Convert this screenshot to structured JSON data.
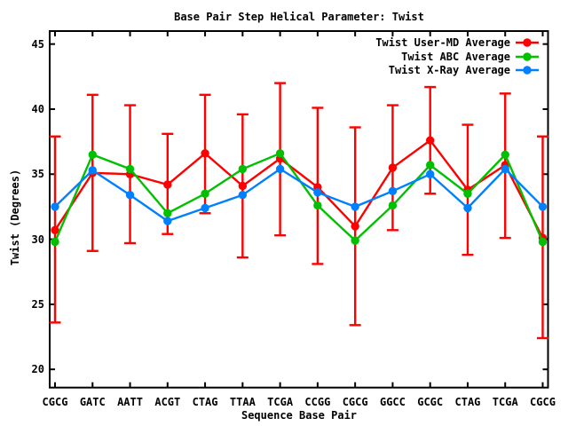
{
  "chart_data": {
    "type": "line",
    "title": "Base Pair Step Helical Parameter: Twist",
    "xlabel": "Sequence Base Pair",
    "ylabel": "Twist (Degrees)",
    "categories": [
      "CGCG",
      "GATC",
      "AATT",
      "ACGT",
      "CTAG",
      "TTAA",
      "TCGA",
      "CCGG",
      "CGCG",
      "GGCC",
      "GCGC",
      "CTAG",
      "TCGA",
      "CGCG"
    ],
    "yticks": [
      20,
      25,
      30,
      35,
      40,
      45
    ],
    "ylim": [
      18.6,
      46.0
    ],
    "grid": false,
    "legend_position": "top-right-inside",
    "background_color": "#ffffff",
    "axis_color": "#000000",
    "series": [
      {
        "name": "Twist User-MD Average",
        "color": "#ff0000",
        "marker": "circle",
        "values": [
          30.7,
          35.1,
          35.0,
          34.2,
          36.6,
          34.1,
          36.2,
          34.0,
          31.0,
          35.5,
          37.6,
          33.8,
          35.7,
          30.1
        ],
        "error_low": [
          23.6,
          29.1,
          29.7,
          30.4,
          32.0,
          28.6,
          30.3,
          28.1,
          23.4,
          30.7,
          33.5,
          28.8,
          30.1,
          22.4
        ],
        "error_high": [
          37.9,
          41.1,
          40.3,
          38.1,
          41.1,
          39.6,
          42.0,
          40.1,
          38.6,
          40.3,
          41.7,
          38.8,
          41.2,
          37.9
        ]
      },
      {
        "name": "Twist ABC Average",
        "color": "#00c000",
        "marker": "circle",
        "values": [
          29.8,
          36.5,
          35.4,
          32.0,
          33.5,
          35.4,
          36.6,
          32.6,
          29.9,
          32.6,
          35.7,
          33.5,
          36.5,
          29.8
        ]
      },
      {
        "name": "Twist X-Ray Average",
        "color": "#0080ff",
        "marker": "circle",
        "values": [
          32.5,
          35.3,
          33.4,
          31.4,
          32.4,
          33.4,
          35.4,
          33.6,
          32.5,
          33.7,
          35.0,
          32.4,
          35.4,
          32.5
        ]
      }
    ]
  }
}
